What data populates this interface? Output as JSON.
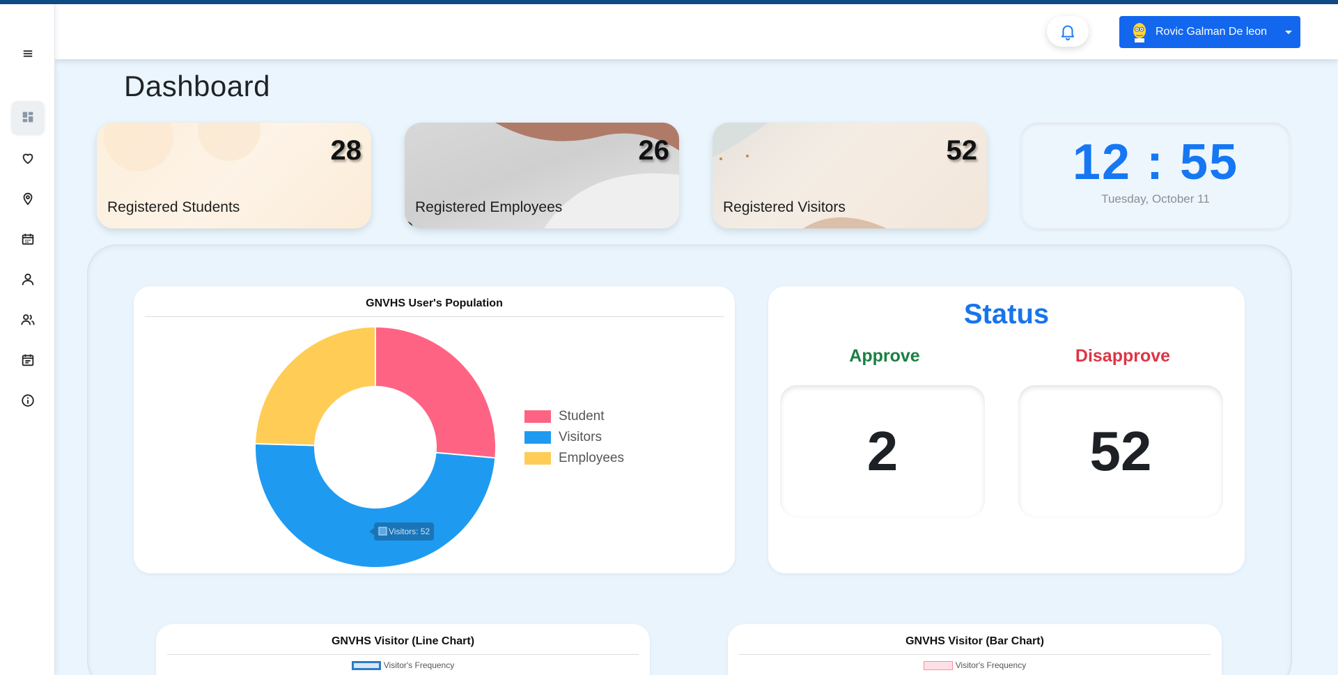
{
  "header": {
    "user_name": "Rovic Galman De leon"
  },
  "sidebar": {
    "items": [
      {
        "icon": "menu-icon"
      },
      {
        "icon": "dashboard-icon"
      },
      {
        "icon": "heart-icon"
      },
      {
        "icon": "location-pin-icon"
      },
      {
        "icon": "calendar-icon"
      },
      {
        "icon": "user-icon"
      },
      {
        "icon": "users-icon"
      },
      {
        "icon": "schedule-icon"
      },
      {
        "icon": "info-icon"
      }
    ]
  },
  "page": {
    "title": "Dashboard"
  },
  "stats": {
    "students": {
      "label": "Registered Students",
      "value": "28"
    },
    "employees": {
      "label": "Registered Employees",
      "value": "26"
    },
    "visitors": {
      "label": "Registered Visitors",
      "value": "52"
    }
  },
  "clock": {
    "time": "12 : 55",
    "date": "Tuesday, October 11"
  },
  "status": {
    "title": "Status",
    "approve_label": "Approve",
    "approve_value": "2",
    "disapprove_label": "Disapprove",
    "disapprove_value": "52"
  },
  "colors": {
    "accent": "#1367ee",
    "student": "#ff6384",
    "visitors": "#1e9bf0",
    "employees": "#ffcd56",
    "approve": "#198043",
    "disapprove": "#dc3545"
  },
  "chart_data": [
    {
      "type": "pie",
      "title": "GNVHS User's Population",
      "categories": [
        "Student",
        "Visitors",
        "Employees"
      ],
      "values": [
        28,
        52,
        26
      ],
      "colors": [
        "#ff6384",
        "#1e9bf0",
        "#ffcd56"
      ],
      "legend": "right",
      "tooltip": "Visitors: 52"
    },
    {
      "type": "line",
      "title": "GNVHS Visitor (Line Chart)",
      "series": [
        {
          "name": "Visitor's Frequency",
          "values": []
        }
      ]
    },
    {
      "type": "bar",
      "title": "GNVHS Visitor (Bar Chart)",
      "series": [
        {
          "name": "Visitor's Frequency",
          "values": []
        }
      ]
    }
  ]
}
